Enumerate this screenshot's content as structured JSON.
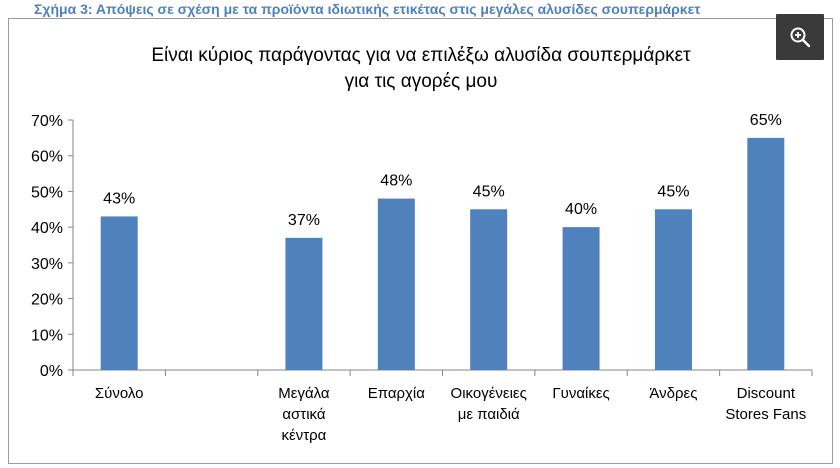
{
  "caption": "Σχήμα 3: Απόψεις σε σχέση με τα προϊόντα ιδιωτικής ετικέτας στις μεγάλες αλυσίδες σουπερμάρκετ",
  "zoom": {
    "icon": "zoom-in-icon"
  },
  "chart_data": {
    "type": "bar",
    "title": [
      "Είναι κύριος παράγοντας για να επιλέξω αλυσίδα σουπερμάρκετ",
      "για τις αγορές μου"
    ],
    "xlabel": "",
    "ylabel": "",
    "ylim": [
      0,
      70
    ],
    "yticks": [
      "0%",
      "10%",
      "20%",
      "30%",
      "40%",
      "50%",
      "60%",
      "70%"
    ],
    "grid": false,
    "legend": "none",
    "bar_color": "#4f81bd",
    "categories": [
      [
        "Σύνολο"
      ],
      [
        ""
      ],
      [
        "Μεγάλα",
        "αστικά",
        "κέντρα"
      ],
      [
        "Επαρχία"
      ],
      [
        "Οικογένειες",
        "με παιδιά"
      ],
      [
        "Γυναίκες"
      ],
      [
        "Άνδρες"
      ],
      [
        "Discount",
        "Stores Fans"
      ]
    ],
    "values": [
      43,
      null,
      37,
      48,
      45,
      40,
      45,
      65
    ],
    "value_labels": [
      "43%",
      "",
      "37%",
      "48%",
      "45%",
      "40%",
      "45%",
      "65%"
    ]
  }
}
